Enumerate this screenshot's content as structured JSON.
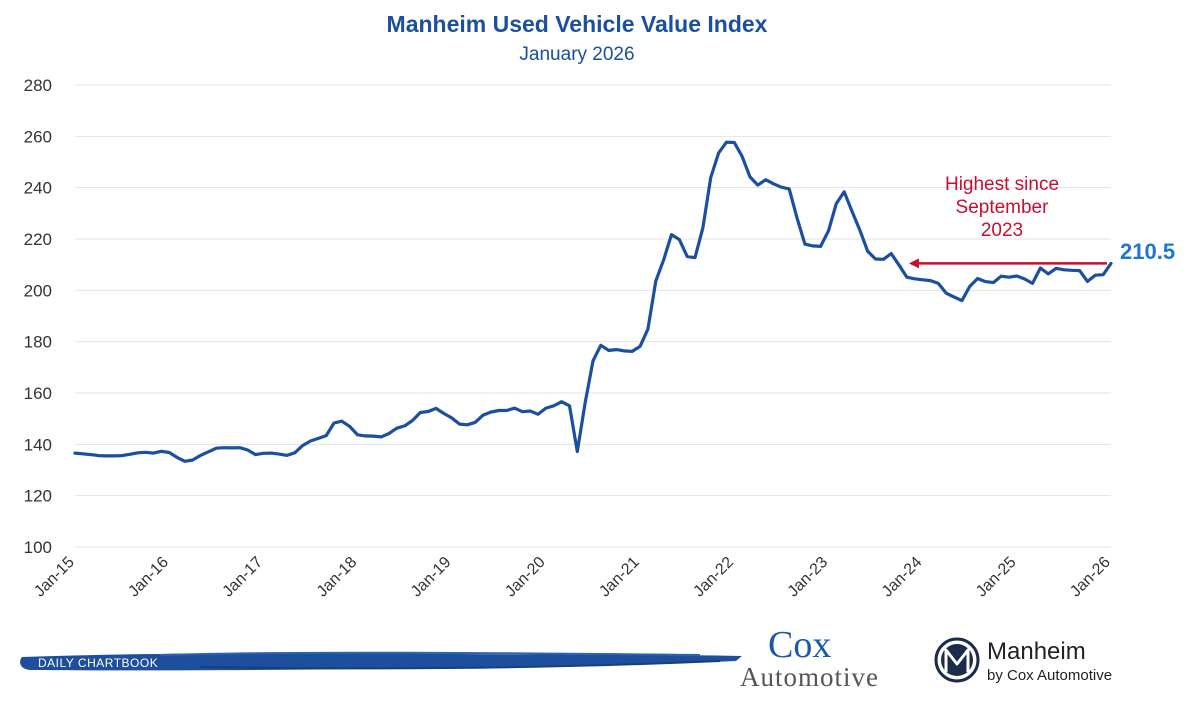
{
  "chart_data": {
    "type": "line",
    "title": "Manheim Used Vehicle Value Index",
    "subtitle": "January 2026",
    "xlabel": "",
    "ylabel": "",
    "ylim": [
      100,
      280
    ],
    "yticks": [
      100,
      120,
      140,
      160,
      180,
      200,
      220,
      240,
      260,
      280
    ],
    "x_tick_labels": [
      "Jan-15",
      "Jan-16",
      "Jan-17",
      "Jan-18",
      "Jan-19",
      "Jan-20",
      "Jan-21",
      "Jan-22",
      "Jan-23",
      "Jan-24",
      "Jan-25",
      "Jan-26"
    ],
    "grid": true,
    "legend": "none",
    "line_color": "#1b4fa0",
    "series": [
      {
        "values": [
          136.6,
          136.3,
          136.0,
          135.6,
          135.5,
          135.5,
          135.6,
          136.1,
          136.7,
          136.9,
          136.6,
          137.3,
          136.8,
          134.9,
          133.4,
          133.9,
          135.7,
          137.1,
          138.5,
          138.7,
          138.6,
          138.7,
          137.8,
          136.0,
          136.5,
          136.6,
          136.2,
          135.7,
          136.7,
          139.5,
          141.3,
          142.3,
          143.4,
          148.3,
          149.0,
          147.0,
          143.7,
          143.3,
          143.2,
          142.9,
          144.2,
          146.3,
          147.2,
          149.3,
          152.4,
          152.8,
          154.0,
          152.0,
          150.3,
          147.9,
          147.6,
          148.6,
          151.4,
          152.6,
          153.2,
          153.2,
          154.1,
          152.7,
          153.0,
          151.7,
          154.1,
          155.0,
          156.6,
          155.0,
          137.2,
          156.3,
          172.5,
          178.6,
          176.6,
          176.9,
          176.4,
          176.2,
          178.2,
          184.9,
          203.6,
          211.8,
          221.7,
          219.8,
          213.2,
          212.7,
          224.4,
          243.9,
          253.5,
          257.7,
          257.6,
          252.2,
          244.2,
          241.0,
          243.1,
          241.5,
          240.2,
          239.5,
          228.1,
          218.0,
          217.3,
          217.1,
          223.2,
          233.8,
          238.4,
          230.8,
          223.5,
          215.2,
          212.2,
          212.1,
          214.3,
          209.8,
          205.1,
          204.5,
          204.1,
          203.8,
          202.7,
          198.9,
          197.4,
          196.0,
          201.5,
          204.6,
          203.4,
          203.0,
          205.5,
          205.1,
          205.6,
          204.4,
          202.7,
          208.7,
          206.4,
          208.6,
          208.0,
          207.8,
          207.7,
          203.5,
          205.9,
          206.1,
          210.5
        ]
      }
    ],
    "annotations": {
      "arrow_label": [
        "Highest since",
        "September",
        "2023"
      ],
      "arrow_value": 210.5,
      "arrow_start_month": "Jan-26",
      "arrow_end_month": "Sep-23",
      "end_label": "210.5"
    },
    "colors": {
      "title": "#1b4fa0",
      "annotation": "#c8102e",
      "end_label": "#1f77d0"
    }
  },
  "footer": {
    "brush_text": "DAILY CHARTBOOK",
    "cox_top": "Cox",
    "cox_bottom": "Automotive",
    "manheim_name": "Manheim",
    "manheim_sub": "by Cox Automotive",
    "manheim_logo": "manheim-m-logo"
  }
}
